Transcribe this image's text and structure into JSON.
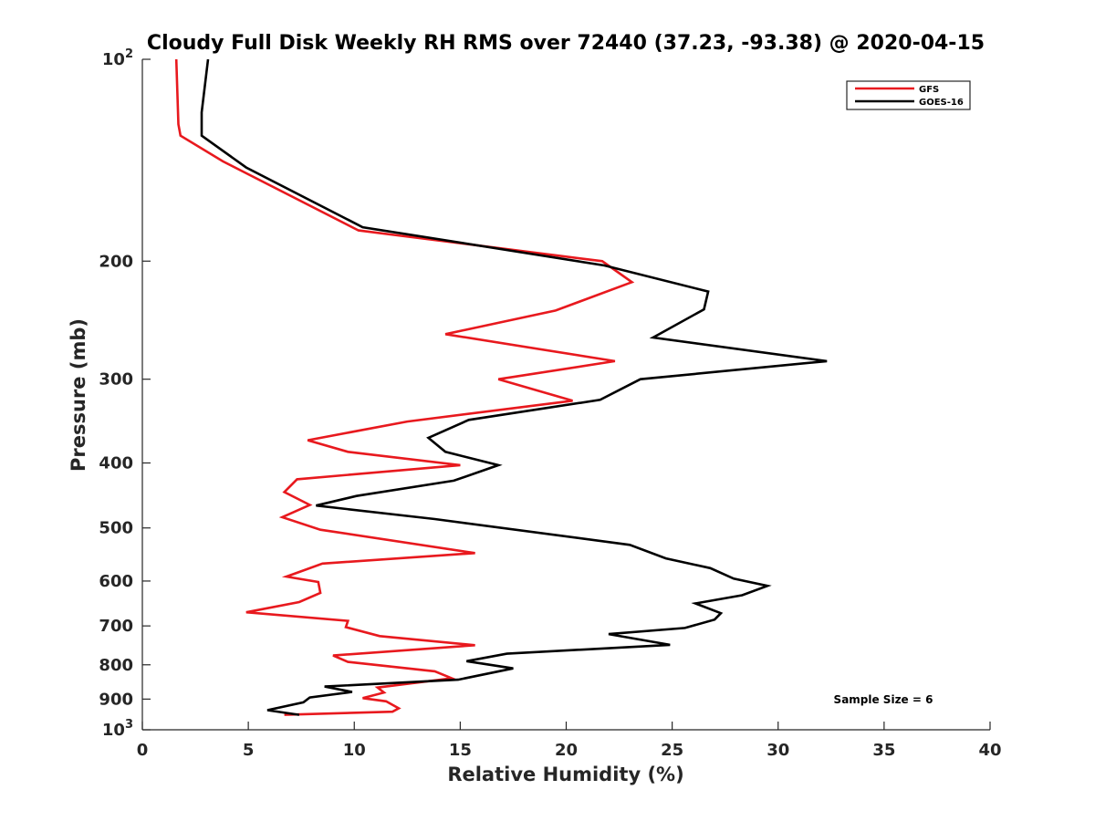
{
  "chart_data": {
    "type": "line",
    "title": "Cloudy Full Disk Weekly RH RMS over 72440 (37.23, -93.38) @ 2020-04-15",
    "xlabel": "Relative Humidity (%)",
    "ylabel": "Pressure (mb)",
    "xlim": [
      0,
      40
    ],
    "ylim": [
      100,
      1000
    ],
    "yscale": "log",
    "y_reversed": true,
    "grid": false,
    "legend_position": "top-right",
    "x_ticks": [
      "0",
      "5",
      "10",
      "15",
      "20",
      "25",
      "30",
      "35",
      "40"
    ],
    "y_ticks": [
      {
        "value": 100,
        "base": "10",
        "exp": "2"
      },
      {
        "value": 200,
        "label": "200"
      },
      {
        "value": 300,
        "label": "300"
      },
      {
        "value": 400,
        "label": "400"
      },
      {
        "value": 500,
        "label": "500"
      },
      {
        "value": 600,
        "label": "600"
      },
      {
        "value": 700,
        "label": "700"
      },
      {
        "value": 800,
        "label": "800"
      },
      {
        "value": 900,
        "label": "900"
      },
      {
        "value": 1000,
        "base": "10",
        "exp": "3"
      }
    ],
    "annotation": "Sample Size = 6",
    "series": [
      {
        "name": "GFS",
        "color": "#e8191e",
        "points": [
          [
            1.6,
            100
          ],
          [
            1.7,
            125
          ],
          [
            1.8,
            130
          ],
          [
            3.8,
            142
          ],
          [
            10.2,
            180
          ],
          [
            21.7,
            200
          ],
          [
            23.1,
            215
          ],
          [
            19.5,
            237
          ],
          [
            14.3,
            257
          ],
          [
            22.3,
            282
          ],
          [
            16.8,
            300
          ],
          [
            20.3,
            323
          ],
          [
            12.5,
            347
          ],
          [
            7.8,
            370
          ],
          [
            9.7,
            385
          ],
          [
            15.0,
            403
          ],
          [
            7.3,
            423
          ],
          [
            6.7,
            442
          ],
          [
            7.9,
            462
          ],
          [
            6.6,
            482
          ],
          [
            8.4,
            503
          ],
          [
            15.7,
            545
          ],
          [
            8.5,
            565
          ],
          [
            6.8,
            591
          ],
          [
            8.3,
            602
          ],
          [
            8.4,
            625
          ],
          [
            7.4,
            645
          ],
          [
            4.9,
            668
          ],
          [
            9.7,
            688
          ],
          [
            9.6,
            703
          ],
          [
            11.2,
            725
          ],
          [
            15.7,
            748
          ],
          [
            9.0,
            775
          ],
          [
            9.7,
            792
          ],
          [
            13.8,
            818
          ],
          [
            14.6,
            838
          ],
          [
            11.1,
            865
          ],
          [
            11.4,
            880
          ],
          [
            10.4,
            897
          ],
          [
            11.5,
            907
          ],
          [
            12.1,
            929
          ],
          [
            11.8,
            940
          ],
          [
            6.7,
            950
          ]
        ]
      },
      {
        "name": "GOES-16",
        "color": "#000000",
        "points": [
          [
            3.1,
            100
          ],
          [
            2.8,
            120
          ],
          [
            2.8,
            130
          ],
          [
            4.9,
            145
          ],
          [
            10.4,
            178
          ],
          [
            21.8,
            203
          ],
          [
            26.7,
            222
          ],
          [
            26.5,
            236
          ],
          [
            24.1,
            260
          ],
          [
            32.3,
            282
          ],
          [
            23.5,
            300
          ],
          [
            21.6,
            322
          ],
          [
            15.4,
            345
          ],
          [
            13.5,
            367
          ],
          [
            14.3,
            385
          ],
          [
            16.8,
            403
          ],
          [
            14.7,
            425
          ],
          [
            10.1,
            448
          ],
          [
            8.2,
            463
          ],
          [
            13.8,
            485
          ],
          [
            23.0,
            530
          ],
          [
            24.7,
            555
          ],
          [
            26.8,
            574
          ],
          [
            27.9,
            595
          ],
          [
            29.5,
            610
          ],
          [
            28.3,
            630
          ],
          [
            26.1,
            648
          ],
          [
            27.3,
            670
          ],
          [
            27.0,
            685
          ],
          [
            25.6,
            705
          ],
          [
            22.0,
            720
          ],
          [
            24.9,
            747
          ],
          [
            17.2,
            770
          ],
          [
            15.3,
            790
          ],
          [
            17.5,
            810
          ],
          [
            14.9,
            842
          ],
          [
            8.6,
            862
          ],
          [
            9.9,
            878
          ],
          [
            7.9,
            895
          ],
          [
            7.6,
            910
          ],
          [
            5.9,
            935
          ],
          [
            7.4,
            950
          ]
        ]
      }
    ]
  }
}
